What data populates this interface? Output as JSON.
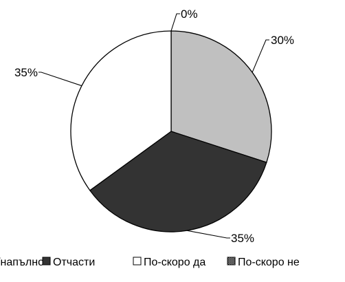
{
  "chart_data": {
    "type": "pie",
    "categories": [
      "Изцяло/напълно",
      "Отчасти",
      "По-скоро да",
      "По-скоро не"
    ],
    "values": [
      30,
      35,
      35,
      0
    ],
    "data_labels": [
      "30%",
      "35%",
      "35%",
      "0%"
    ],
    "unit": "%",
    "colors": [
      "#c0c0c0",
      "#333333",
      "#ffffff",
      "#ffffff"
    ],
    "legend": {
      "position": "bottom",
      "entries": [
        {
          "label": "Изцяло/напълно",
          "color": "#c0c0c0",
          "pattern": "solid"
        },
        {
          "label": "Отчасти",
          "color": "#333333",
          "pattern": "solid"
        },
        {
          "label": "По-скоро да",
          "color": "#ffffff",
          "pattern": "solid"
        },
        {
          "label": "По-скоро не",
          "color": "#ffffff",
          "pattern": "crosshatch"
        }
      ]
    }
  }
}
